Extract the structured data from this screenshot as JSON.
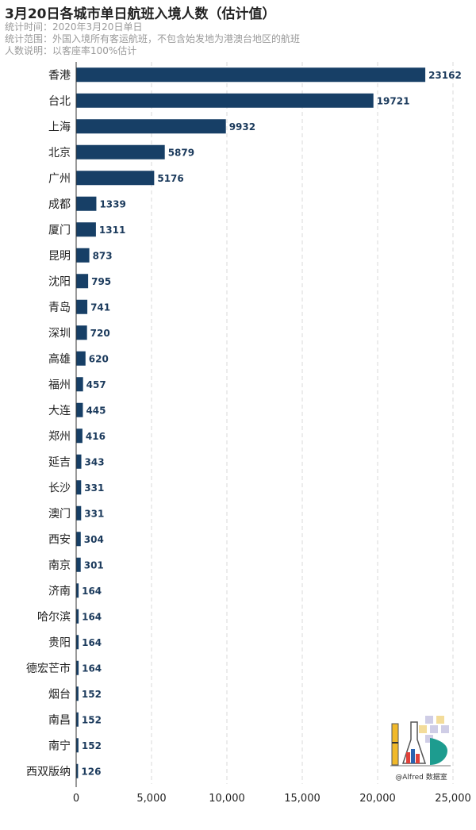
{
  "header": {
    "title": "3月20日各城市单日航班入境人数（估计值）",
    "lines": [
      "统计时间：2020年3月20日单日",
      "统计范围：外国入境所有客运航班，不包含始发地为港澳台地区的航班",
      "人数说明：以客座率100%估计"
    ]
  },
  "watermark": {
    "text": "@Alfred 数据室"
  },
  "colors": {
    "bar": "#173f66",
    "label": "#1b3a5c",
    "grid": "#d9d9d9"
  },
  "chart_data": {
    "type": "bar",
    "orientation": "horizontal",
    "categories": [
      "香港",
      "台北",
      "上海",
      "北京",
      "广州",
      "成都",
      "厦门",
      "昆明",
      "沈阳",
      "青岛",
      "深圳",
      "高雄",
      "福州",
      "大连",
      "郑州",
      "延吉",
      "长沙",
      "澳门",
      "西安",
      "南京",
      "济南",
      "哈尔滨",
      "贵阳",
      "德宏芒市",
      "烟台",
      "南昌",
      "南宁",
      "西双版纳"
    ],
    "values": [
      23162,
      19721,
      9932,
      5879,
      5176,
      1339,
      1311,
      873,
      795,
      741,
      720,
      620,
      457,
      445,
      416,
      343,
      331,
      331,
      304,
      301,
      164,
      164,
      164,
      164,
      152,
      152,
      152,
      126
    ],
    "xlim": [
      0,
      25000
    ],
    "xticks": [
      0,
      5000,
      10000,
      15000,
      20000,
      25000
    ],
    "xtick_labels": [
      "0",
      "5,000",
      "10,000",
      "15,000",
      "20,000",
      "25,000"
    ],
    "grid": "vertical dashed",
    "data_labels": true
  }
}
